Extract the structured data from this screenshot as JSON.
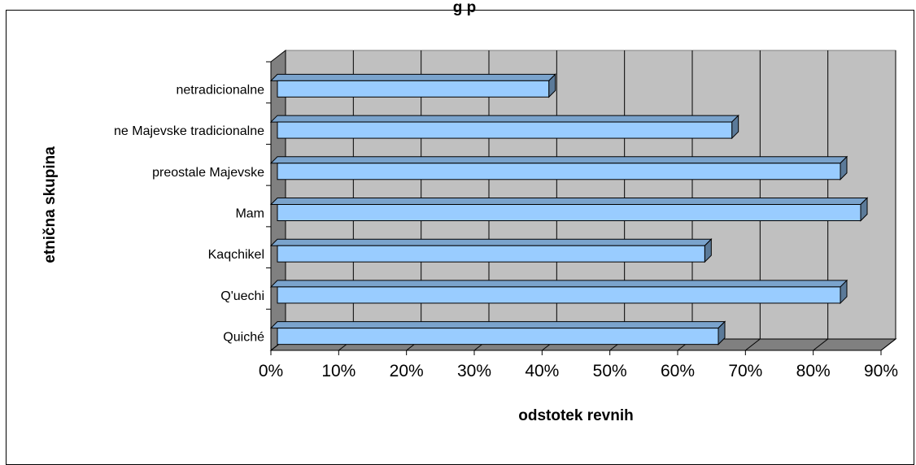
{
  "chart_data": {
    "type": "bar",
    "orientation": "horizontal",
    "title": "",
    "title_visible_fragment": "g                              p",
    "xlabel": "odstotek revnih",
    "ylabel": "etnična skupina",
    "categories": [
      "netradicionalne",
      "ne Majevske tradicionalne",
      "preostale Majevske",
      "Mam",
      "Kaqchikel",
      "Q'uechi",
      "Quiché"
    ],
    "values": [
      41,
      68,
      84,
      87,
      64,
      84,
      66
    ],
    "xlim": [
      0,
      90
    ],
    "xticks": [
      "0%",
      "10%",
      "20%",
      "30%",
      "40%",
      "50%",
      "60%",
      "70%",
      "80%",
      "90%"
    ],
    "grid": true,
    "legend": "none",
    "colors": {
      "bar_front": "#99ccff",
      "bar_top": "#7aa3cc",
      "bar_side": "#5b7a99",
      "plot_back": "#c0c0c0",
      "plot_floor_wall": "#808080",
      "gridline": "#000000"
    }
  }
}
